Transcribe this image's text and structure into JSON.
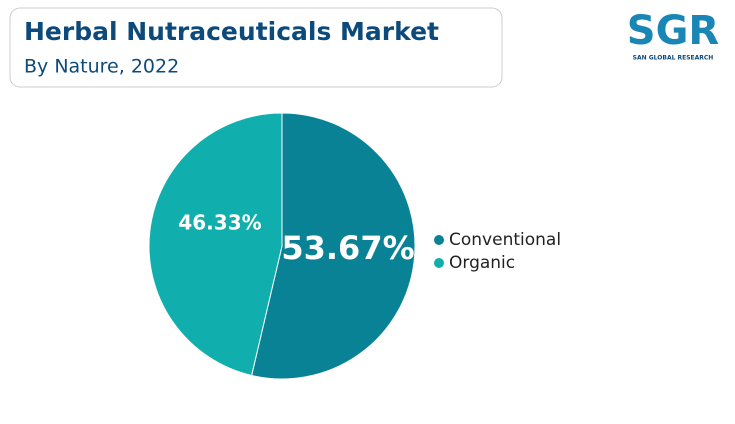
{
  "chart_data": {
    "type": "pie",
    "title": "Herbal Nutraceuticals Market",
    "subtitle": "By Nature, 2022",
    "categories": [
      "Conventional",
      "Organic"
    ],
    "values": [
      53.67,
      46.33
    ],
    "value_labels": [
      "53.67%",
      "46.33%"
    ],
    "colors": [
      "#0a8296",
      "#10aeac"
    ],
    "legend": "right",
    "logo": {
      "text": "SGR",
      "caption": "SAN GLOBAL RESEARCH"
    }
  }
}
